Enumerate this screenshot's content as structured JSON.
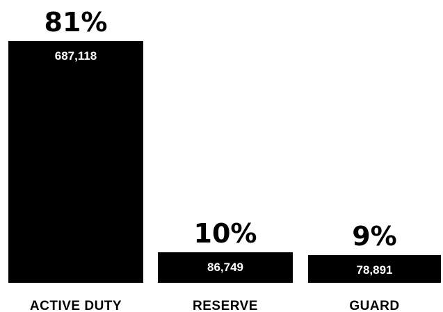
{
  "chart_data": {
    "type": "bar",
    "categories": [
      "ACTIVE DUTY",
      "RESERVE",
      "GUARD"
    ],
    "values": [
      687118,
      86749,
      78891
    ],
    "value_labels": [
      "687,118",
      "86,749",
      "78,891"
    ],
    "percent_labels": [
      "81%",
      "10%",
      "9%"
    ],
    "title": "",
    "xlabel": "",
    "ylabel": "",
    "ylim": [
      0,
      687118
    ],
    "grid": false,
    "legend": "none",
    "bar_color": "#000000"
  }
}
